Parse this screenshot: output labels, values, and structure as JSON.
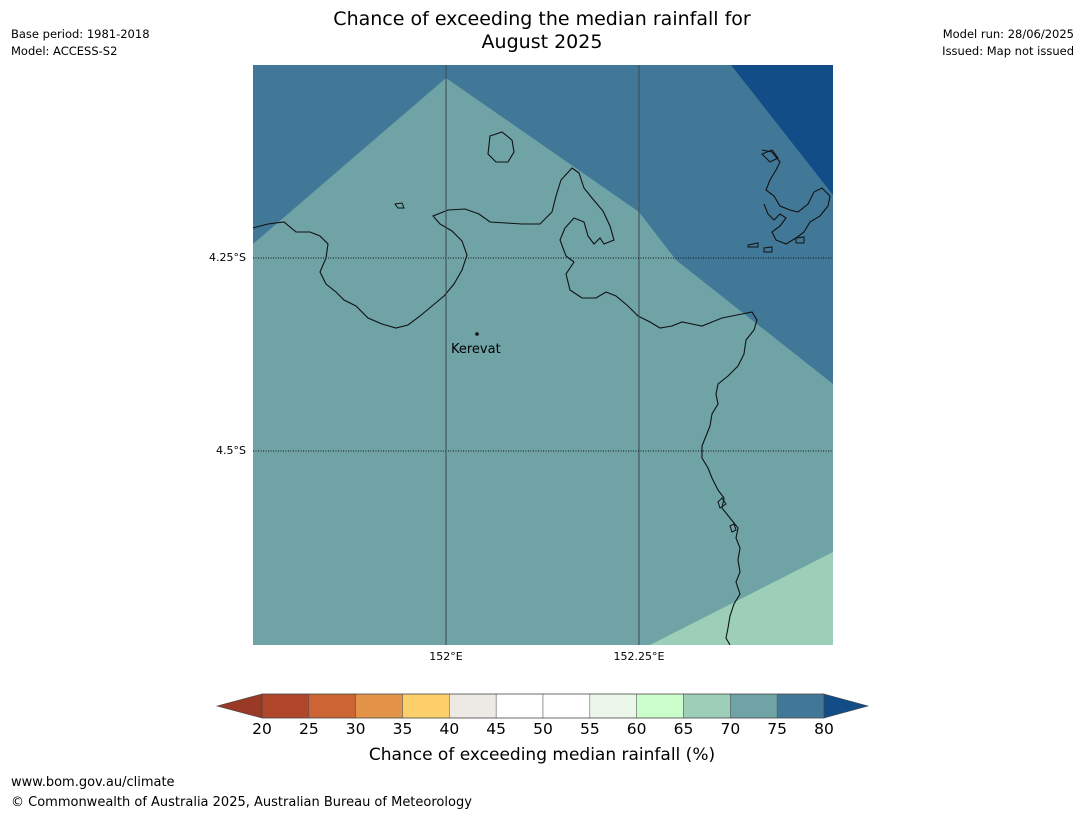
{
  "header": {
    "title_line1": "Chance of exceeding the median rainfall for",
    "title_line2": "August 2025",
    "base_period": "Base period: 1981-2018",
    "model": "Model: ACCESS-S2",
    "model_run": "Model run: 28/06/2025",
    "issued": "Issued: Map not issued"
  },
  "map": {
    "lat_labels": [
      "4.25°S",
      "4.5°S"
    ],
    "lon_labels": [
      "152°E",
      "152.25°E"
    ],
    "places": [
      {
        "name": "Kerevat"
      }
    ],
    "region_colors": {
      "65-70": "#9dcfb8",
      "70-75": "#6fa3a6",
      "75-80": "#427897",
      "above-80": "#134d87"
    }
  },
  "colorbar": {
    "ticks": [
      "20",
      "25",
      "30",
      "35",
      "40",
      "45",
      "50",
      "55",
      "60",
      "65",
      "70",
      "75",
      "80"
    ],
    "colors": [
      "#b0462a",
      "#cc6433",
      "#e39448",
      "#fdcf6a",
      "#ede9e4",
      "#ffffff",
      "#ffffff",
      "#eaf7e9",
      "#cbfccb",
      "#9dcfb8",
      "#6fa3a6",
      "#427897"
    ],
    "under_color": "#983a26",
    "over_color": "#134d87",
    "label": "Chance of exceeding median rainfall (%)"
  },
  "footer": {
    "url": "www.bom.gov.au/climate",
    "copyright": "© Commonwealth of Australia 2025, Australian Bureau of Meteorology"
  }
}
